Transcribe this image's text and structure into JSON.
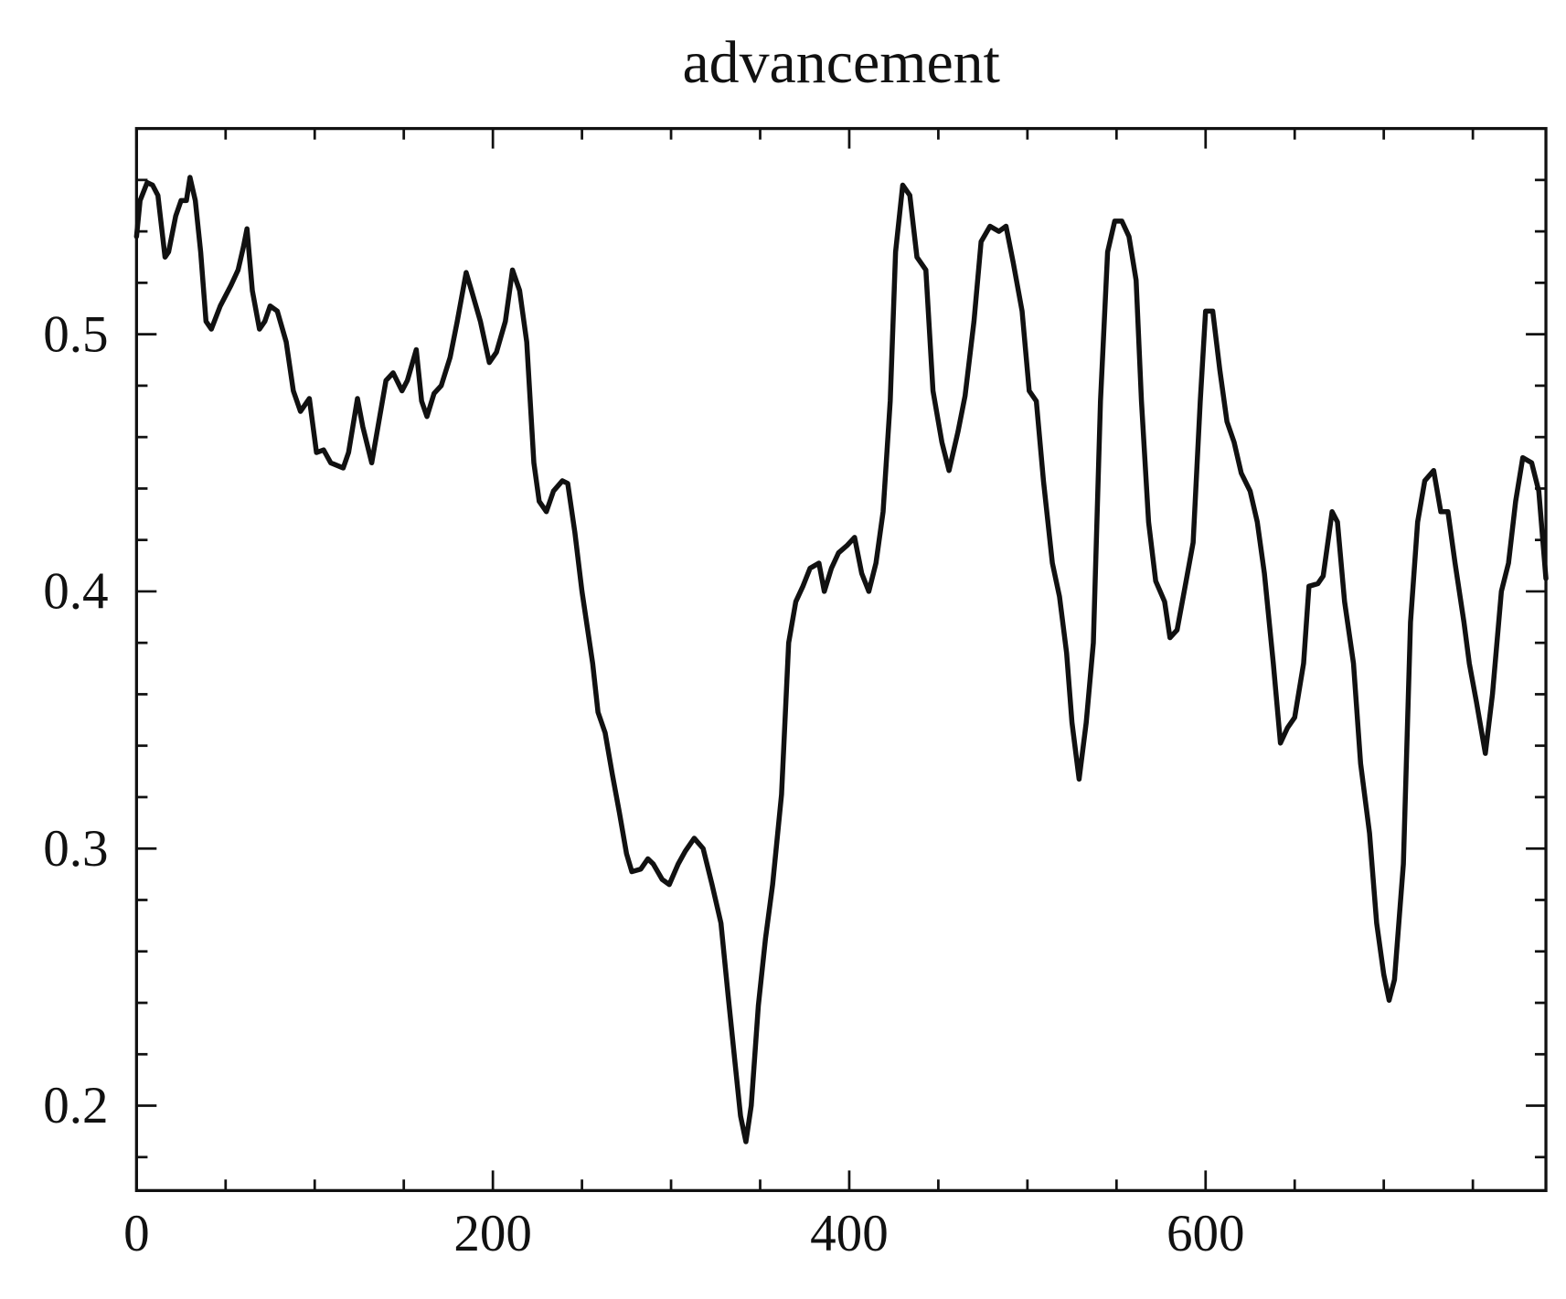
{
  "chart_data": {
    "type": "line",
    "title": "advancement",
    "x": [
      0,
      2,
      6,
      9,
      12,
      16,
      18,
      22,
      25,
      28,
      30,
      33,
      36,
      39,
      42,
      47,
      53,
      57,
      60,
      62,
      65,
      69,
      72,
      75,
      79,
      84,
      88,
      92,
      97,
      101,
      105,
      109,
      116,
      119,
      124,
      127,
      132,
      136,
      140,
      144,
      149,
      152,
      157,
      160,
      163,
      167,
      171,
      176,
      180,
      185,
      188,
      193,
      198,
      202,
      207,
      211,
      215,
      219,
      223,
      226,
      230,
      234,
      239,
      242,
      246,
      250,
      256,
      259,
      263,
      267,
      271,
      275,
      278,
      283,
      287,
      290,
      295,
      299,
      304,
      308,
      313,
      318,
      323,
      328,
      332,
      336,
      339,
      342,
      345,
      349,
      353,
      357,
      362,
      366,
      370,
      374,
      378,
      383,
      386,
      390,
      394,
      399,
      403,
      407,
      411,
      415,
      419,
      423,
      426,
      430,
      434,
      438,
      443,
      447,
      452,
      456,
      461,
      465,
      470,
      474,
      479,
      484,
      488,
      492,
      497,
      501,
      505,
      509,
      514,
      518,
      522,
      525,
      529,
      533,
      537,
      541,
      545,
      549,
      553,
      557,
      561,
      564,
      568,
      572,
      577,
      580,
      584,
      588,
      593,
      597,
      600,
      604,
      608,
      612,
      616,
      620,
      625,
      629,
      633,
      638,
      642,
      646,
      650,
      655,
      658,
      663,
      666,
      671,
      674,
      678,
      683,
      687,
      692,
      696,
      700,
      703,
      706,
      711,
      715,
      719,
      723,
      728,
      732,
      736,
      740,
      745,
      748,
      752,
      757,
      761,
      766,
      770,
      774,
      778,
      783,
      787,
      791
    ],
    "series": [
      {
        "name": "advancement",
        "color": "#111111",
        "values": [
          0.538,
          0.552,
          0.559,
          0.558,
          0.554,
          0.53,
          0.532,
          0.546,
          0.552,
          0.552,
          0.561,
          0.552,
          0.532,
          0.505,
          0.502,
          0.511,
          0.519,
          0.525,
          0.534,
          0.541,
          0.517,
          0.502,
          0.505,
          0.511,
          0.509,
          0.497,
          0.478,
          0.47,
          0.475,
          0.454,
          0.455,
          0.45,
          0.448,
          0.454,
          0.475,
          0.464,
          0.45,
          0.466,
          0.482,
          0.485,
          0.478,
          0.482,
          0.494,
          0.474,
          0.468,
          0.477,
          0.48,
          0.491,
          0.505,
          0.524,
          0.517,
          0.505,
          0.489,
          0.493,
          0.505,
          0.525,
          0.517,
          0.497,
          0.45,
          0.435,
          0.431,
          0.439,
          0.443,
          0.442,
          0.423,
          0.4,
          0.372,
          0.353,
          0.345,
          0.329,
          0.314,
          0.298,
          0.291,
          0.292,
          0.296,
          0.294,
          0.288,
          0.286,
          0.294,
          0.299,
          0.304,
          0.3,
          0.286,
          0.271,
          0.243,
          0.216,
          0.196,
          0.186,
          0.2,
          0.239,
          0.265,
          0.286,
          0.321,
          0.38,
          0.396,
          0.402,
          0.409,
          0.411,
          0.4,
          0.409,
          0.415,
          0.418,
          0.421,
          0.407,
          0.4,
          0.411,
          0.431,
          0.474,
          0.532,
          0.558,
          0.554,
          0.53,
          0.525,
          0.478,
          0.458,
          0.447,
          0.462,
          0.476,
          0.505,
          0.536,
          0.542,
          0.54,
          0.542,
          0.528,
          0.509,
          0.478,
          0.474,
          0.443,
          0.411,
          0.398,
          0.376,
          0.349,
          0.327,
          0.349,
          0.38,
          0.474,
          0.532,
          0.544,
          0.544,
          0.538,
          0.521,
          0.474,
          0.427,
          0.404,
          0.396,
          0.382,
          0.385,
          0.4,
          0.419,
          0.474,
          0.509,
          0.509,
          0.486,
          0.466,
          0.458,
          0.446,
          0.439,
          0.427,
          0.407,
          0.372,
          0.341,
          0.347,
          0.351,
          0.372,
          0.402,
          0.403,
          0.406,
          0.431,
          0.427,
          0.396,
          0.372,
          0.333,
          0.306,
          0.271,
          0.251,
          0.241,
          0.249,
          0.294,
          0.388,
          0.427,
          0.443,
          0.447,
          0.431,
          0.431,
          0.411,
          0.388,
          0.372,
          0.357,
          0.337,
          0.36,
          0.4,
          0.411,
          0.435,
          0.452,
          0.45,
          0.439,
          0.405
        ]
      }
    ],
    "xlim": [
      0,
      791
    ],
    "ylim": [
      0.167,
      0.58
    ],
    "xticks": [
      0,
      200,
      400,
      600
    ],
    "yticks": [
      0.2,
      0.3,
      0.4,
      0.5
    ],
    "xminorticks": [
      50,
      100,
      150,
      250,
      300,
      350,
      450,
      500,
      550,
      650,
      700,
      750
    ],
    "yminorticks": [
      0.18,
      0.22,
      0.24,
      0.26,
      0.28,
      0.32,
      0.34,
      0.36,
      0.38,
      0.42,
      0.44,
      0.46,
      0.48,
      0.52,
      0.54,
      0.56
    ],
    "grid": false
  }
}
